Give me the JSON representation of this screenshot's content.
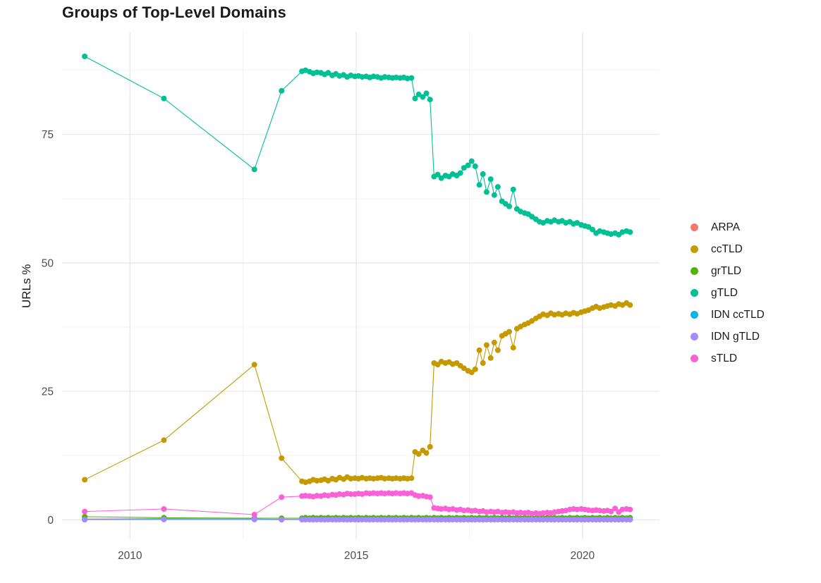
{
  "chart_data": {
    "type": "scatter",
    "title": "Groups of Top-Level Domains",
    "xlabel": "",
    "ylabel": "URLs %",
    "xlim": [
      2008.5,
      2021.7
    ],
    "ylim": [
      -3.8,
      95
    ],
    "grid": true,
    "legend_position": "right-center",
    "x_tick_values": [
      2010,
      2015,
      2020
    ],
    "x_tick_labels": [
      "2010",
      "2015",
      "2020"
    ],
    "y_tick_values": [
      0,
      25,
      50,
      75
    ],
    "y_tick_labels": [
      "0",
      "25",
      "50",
      "75"
    ],
    "x_minor": [
      2012.5,
      2017.5
    ],
    "y_minor": [
      12.5,
      37.5,
      62.5,
      87.5
    ],
    "x": [
      2009.0,
      2010.75,
      2012.75,
      2013.35,
      2013.8,
      2013.88,
      2013.97,
      2014.05,
      2014.13,
      2014.22,
      2014.3,
      2014.38,
      2014.47,
      2014.55,
      2014.63,
      2014.72,
      2014.8,
      2014.88,
      2014.97,
      2015.05,
      2015.13,
      2015.22,
      2015.3,
      2015.38,
      2015.47,
      2015.55,
      2015.63,
      2015.72,
      2015.8,
      2015.88,
      2015.97,
      2016.05,
      2016.13,
      2016.22,
      2016.3,
      2016.38,
      2016.47,
      2016.55,
      2016.63,
      2016.72,
      2016.8,
      2016.88,
      2016.97,
      2017.05,
      2017.13,
      2017.22,
      2017.3,
      2017.38,
      2017.47,
      2017.55,
      2017.63,
      2017.72,
      2017.8,
      2017.88,
      2017.97,
      2018.05,
      2018.13,
      2018.22,
      2018.3,
      2018.38,
      2018.47,
      2018.55,
      2018.63,
      2018.72,
      2018.8,
      2018.88,
      2018.97,
      2019.05,
      2019.13,
      2019.22,
      2019.3,
      2019.38,
      2019.47,
      2019.55,
      2019.63,
      2019.72,
      2019.8,
      2019.88,
      2019.97,
      2020.05,
      2020.13,
      2020.22,
      2020.3,
      2020.38,
      2020.47,
      2020.55,
      2020.63,
      2020.72,
      2020.8,
      2020.88,
      2020.97,
      2021.05
    ],
    "series": [
      {
        "name": "ARPA",
        "color": "#F8766D",
        "values": [
          0.15,
          0.25,
          0.1,
          0.1,
          0.05,
          0.05,
          0.05,
          0.05,
          0.05,
          0.05,
          0.05,
          0.05,
          0.05,
          0.05,
          0.05,
          0.05,
          0.05,
          0.05,
          0.05,
          0.05,
          0.05,
          0.05,
          0.05,
          0.05,
          0.05,
          0.05,
          0.05,
          0.05,
          0.05,
          0.05,
          0.05,
          0.05,
          0.05,
          0.05,
          0.05,
          0.05,
          0.05,
          0.05,
          0.05,
          0.05,
          0.05,
          0.05,
          0.05,
          0.05,
          0.05,
          0.05,
          0.05,
          0.05,
          0.05,
          0.05,
          0.05,
          0.05,
          0.05,
          0.05,
          0.05,
          0.05,
          0.05,
          0.05,
          0.05,
          0.05,
          0.05,
          0.05,
          0.05,
          0.05,
          0.05,
          0.05,
          0.05,
          0.05,
          0.05,
          0.05,
          0.05,
          0.05,
          0.05,
          0.05,
          0.05,
          0.05,
          0.05,
          0.05,
          0.05,
          0.05,
          0.05,
          0.05,
          0.05,
          0.05,
          0.05,
          0.05,
          0.05,
          0.05,
          0.05,
          0.05,
          0.05,
          0.05
        ]
      },
      {
        "name": "ccTLD",
        "color": "#C49A00",
        "values": [
          7.8,
          15.5,
          30.2,
          12.0,
          7.5,
          7.3,
          7.5,
          7.8,
          7.6,
          7.7,
          7.9,
          7.6,
          8.0,
          7.8,
          8.2,
          7.9,
          8.3,
          8.0,
          8.1,
          8.0,
          8.2,
          8.0,
          8.1,
          8.0,
          8.1,
          8.2,
          8.0,
          8.1,
          8.0,
          8.1,
          8.0,
          8.1,
          8.0,
          8.1,
          13.2,
          12.8,
          13.5,
          13.0,
          14.2,
          30.5,
          30.2,
          30.8,
          30.5,
          30.7,
          30.3,
          30.5,
          30.0,
          29.5,
          29.0,
          28.7,
          29.3,
          33.0,
          30.5,
          34.0,
          31.5,
          34.5,
          33.0,
          35.8,
          36.2,
          36.6,
          33.5,
          37.2,
          37.6,
          38.0,
          38.3,
          38.7,
          39.2,
          39.6,
          40.0,
          39.8,
          40.2,
          39.9,
          40.1,
          39.9,
          40.2,
          40.0,
          40.3,
          40.1,
          40.4,
          40.6,
          40.8,
          41.2,
          41.5,
          41.2,
          41.4,
          41.6,
          41.8,
          41.6,
          42.0,
          41.8,
          42.2,
          41.8
        ]
      },
      {
        "name": "grTLD",
        "color": "#53B400",
        "values": [
          0.6,
          0.4,
          0.3,
          0.3,
          0.3,
          0.4,
          0.3,
          0.4,
          0.3,
          0.4,
          0.3,
          0.4,
          0.3,
          0.4,
          0.3,
          0.4,
          0.3,
          0.4,
          0.3,
          0.4,
          0.3,
          0.4,
          0.3,
          0.4,
          0.3,
          0.4,
          0.3,
          0.4,
          0.3,
          0.4,
          0.3,
          0.4,
          0.3,
          0.4,
          0.3,
          0.4,
          0.3,
          0.4,
          0.3,
          0.4,
          0.3,
          0.4,
          0.3,
          0.4,
          0.3,
          0.4,
          0.3,
          0.4,
          0.3,
          0.4,
          0.3,
          0.4,
          0.3,
          0.4,
          0.3,
          0.4,
          0.3,
          0.4,
          0.3,
          0.4,
          0.3,
          0.4,
          0.3,
          0.4,
          0.3,
          0.4,
          0.3,
          0.4,
          0.3,
          0.4,
          0.3,
          0.4,
          0.3,
          0.4,
          0.3,
          0.4,
          0.3,
          0.4,
          0.3,
          0.4,
          0.3,
          0.4,
          0.3,
          0.4,
          0.3,
          0.4,
          0.3,
          0.4,
          0.3,
          0.4,
          0.3,
          0.4
        ]
      },
      {
        "name": "gTLD",
        "color": "#00C094",
        "values": [
          90.2,
          82.0,
          68.2,
          83.5,
          87.3,
          87.5,
          87.2,
          86.9,
          87.1,
          87.0,
          86.7,
          87.0,
          86.5,
          86.8,
          86.4,
          86.6,
          86.2,
          86.5,
          86.3,
          86.4,
          86.2,
          86.3,
          86.1,
          86.3,
          86.2,
          86.0,
          86.2,
          86.1,
          86.0,
          86.1,
          86.0,
          86.1,
          85.9,
          86.0,
          82.0,
          82.8,
          82.3,
          83.0,
          81.8,
          66.8,
          67.2,
          66.5,
          67.0,
          66.8,
          67.3,
          67.0,
          67.5,
          68.5,
          69.0,
          69.8,
          68.8,
          65.2,
          67.3,
          63.8,
          66.3,
          63.2,
          64.8,
          62.0,
          61.5,
          61.0,
          64.3,
          60.5,
          60.0,
          59.7,
          59.5,
          59.0,
          58.5,
          58.0,
          57.8,
          58.2,
          58.0,
          58.3,
          58.0,
          58.2,
          57.8,
          58.0,
          57.6,
          57.8,
          57.4,
          57.2,
          57.0,
          56.5,
          55.8,
          56.2,
          56.0,
          55.8,
          55.6,
          55.8,
          55.5,
          56.0,
          56.2,
          56.0
        ]
      },
      {
        "name": "IDN ccTLD",
        "color": "#00B6EB",
        "values": [
          0.05,
          0.1,
          0.15,
          0.05,
          0.08,
          0.08,
          0.08,
          0.08,
          0.08,
          0.08,
          0.08,
          0.08,
          0.08,
          0.08,
          0.08,
          0.08,
          0.08,
          0.08,
          0.08,
          0.08,
          0.08,
          0.08,
          0.08,
          0.08,
          0.08,
          0.08,
          0.08,
          0.08,
          0.08,
          0.08,
          0.08,
          0.08,
          0.08,
          0.08,
          0.08,
          0.08,
          0.08,
          0.08,
          0.08,
          0.08,
          0.08,
          0.08,
          0.08,
          0.08,
          0.08,
          0.08,
          0.08,
          0.08,
          0.08,
          0.08,
          0.08,
          0.08,
          0.08,
          0.08,
          0.08,
          0.08,
          0.08,
          0.08,
          0.08,
          0.08,
          0.08,
          0.08,
          0.08,
          0.08,
          0.08,
          0.08,
          0.08,
          0.08,
          0.08,
          0.08,
          0.08,
          0.08,
          0.08,
          0.08,
          0.08,
          0.08,
          0.08,
          0.08,
          0.08,
          0.08,
          0.08,
          0.08,
          0.08,
          0.08,
          0.08,
          0.08,
          0.08,
          0.08,
          0.08,
          0.08,
          0.08,
          0.08
        ]
      },
      {
        "name": "IDN gTLD",
        "color": "#A58AFF",
        "values": [
          0.02,
          0.05,
          0.05,
          0.02,
          0.03,
          0.03,
          0.03,
          0.03,
          0.03,
          0.03,
          0.03,
          0.03,
          0.03,
          0.03,
          0.03,
          0.03,
          0.03,
          0.03,
          0.03,
          0.03,
          0.03,
          0.03,
          0.03,
          0.03,
          0.03,
          0.03,
          0.03,
          0.03,
          0.03,
          0.03,
          0.03,
          0.03,
          0.03,
          0.03,
          0.03,
          0.03,
          0.03,
          0.03,
          0.03,
          0.03,
          0.03,
          0.03,
          0.03,
          0.03,
          0.03,
          0.03,
          0.03,
          0.03,
          0.03,
          0.03,
          0.03,
          0.03,
          0.03,
          0.03,
          0.03,
          0.03,
          0.03,
          0.03,
          0.03,
          0.03,
          0.03,
          0.03,
          0.03,
          0.03,
          0.03,
          0.03,
          0.03,
          0.03,
          0.03,
          0.03,
          0.03,
          0.03,
          0.03,
          0.03,
          0.03,
          0.03,
          0.03,
          0.03,
          0.03,
          0.03,
          0.03,
          0.03,
          0.03,
          0.03,
          0.03,
          0.03,
          0.03,
          0.03,
          0.03,
          0.03,
          0.03,
          0.03
        ]
      },
      {
        "name": "sTLD",
        "color": "#FB61D7",
        "values": [
          1.6,
          2.1,
          1.0,
          4.4,
          4.6,
          4.7,
          4.6,
          4.5,
          4.7,
          4.6,
          4.8,
          4.7,
          4.9,
          4.8,
          5.0,
          4.9,
          5.1,
          5.0,
          5.0,
          5.1,
          5.0,
          5.2,
          5.1,
          5.2,
          5.1,
          5.2,
          5.1,
          5.2,
          5.1,
          5.2,
          5.1,
          5.2,
          5.1,
          5.2,
          4.8,
          4.6,
          4.7,
          4.5,
          4.4,
          2.3,
          2.2,
          2.1,
          2.2,
          2.0,
          2.1,
          1.9,
          2.0,
          1.8,
          1.9,
          1.7,
          1.8,
          1.6,
          1.7,
          1.5,
          1.6,
          1.5,
          1.6,
          1.4,
          1.5,
          1.4,
          1.5,
          1.3,
          1.4,
          1.3,
          1.4,
          1.2,
          1.3,
          1.2,
          1.3,
          1.4,
          1.3,
          1.5,
          1.6,
          1.7,
          1.8,
          2.0,
          2.1,
          2.0,
          2.1,
          2.0,
          1.9,
          1.8,
          1.9,
          1.8,
          1.7,
          1.8,
          1.6,
          2.2,
          1.5,
          2.0,
          2.1,
          2.0
        ]
      }
    ]
  }
}
